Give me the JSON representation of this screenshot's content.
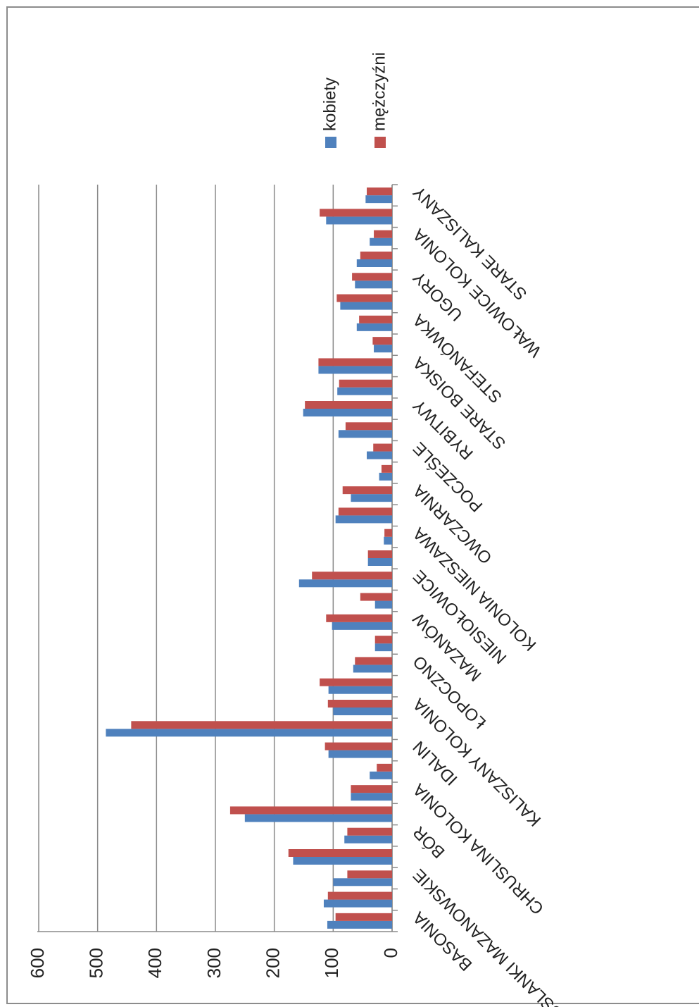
{
  "chart_data": {
    "type": "bar",
    "categories": [
      "BASONIA",
      null,
      "BRUŚLANKI MAZANOWSKIE",
      null,
      "BÓR",
      null,
      "CHRUSLINA KOLONIA",
      null,
      "IDALIN",
      null,
      "KALISZANY KOLONIA",
      null,
      "ŁOPOCZNO",
      null,
      "MAZANÓW",
      null,
      "NIESIOŁOWICE",
      null,
      "KOLONIA NIESZAWA",
      null,
      "OWCZARNIA",
      null,
      "POCZEŚLE",
      null,
      "RYBITWY",
      null,
      "STARE BOISKA",
      null,
      "STEFANÓWKA",
      null,
      "UGORY",
      null,
      "WAŁOWICE KOLONIA",
      null,
      "STARE KALISZANY"
    ],
    "series": [
      {
        "name": "kobiety",
        "color": "#4f81bd",
        "values": [
          110,
          116,
          100,
          168,
          81,
          250,
          70,
          38,
          108,
          486,
          100,
          108,
          66,
          29,
          102,
          29,
          158,
          41,
          14,
          96,
          70,
          22,
          43,
          91,
          151,
          93,
          125,
          31,
          60,
          88,
          63,
          60,
          38,
          112,
          45
        ]
      },
      {
        "name": "mężczyźni",
        "color": "#c0504d",
        "values": [
          96,
          109,
          76,
          176,
          76,
          275,
          70,
          26,
          114,
          443,
          109,
          123,
          63,
          29,
          112,
          54,
          136,
          41,
          13,
          91,
          84,
          18,
          32,
          79,
          148,
          90,
          125,
          33,
          56,
          94,
          68,
          54,
          31,
          123,
          43
        ]
      }
    ],
    "ylim": [
      0,
      600
    ],
    "yticks": [
      0,
      100,
      200,
      300,
      400,
      500,
      600
    ],
    "grid": true,
    "legend": "right"
  }
}
